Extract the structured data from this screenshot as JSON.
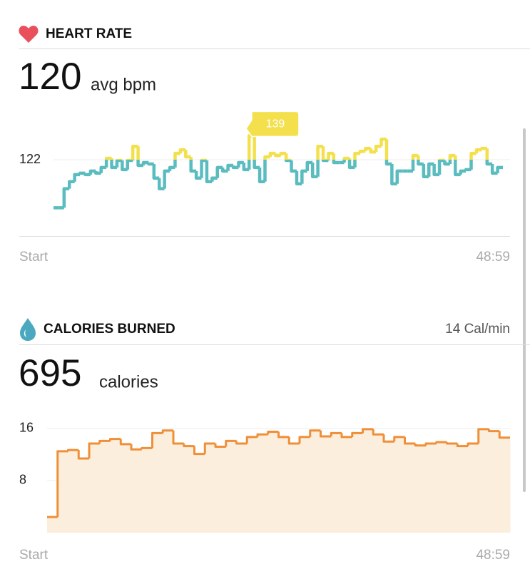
{
  "chart_data": [
    {
      "type": "step-line",
      "title": "HEART RATE",
      "summary_value": 120,
      "summary_unit": "avg bpm",
      "x_labels": [
        "Start",
        "48:59"
      ],
      "series": [
        {
          "color": "#5bbcbf",
          "highlight_color": "#f3e04c",
          "values": [
            88,
            88,
            101.5,
            106.5,
            111.5,
            112.5,
            111.5,
            114,
            112.5,
            116.5,
            123,
            116.5,
            121.5,
            115,
            121.5,
            131.5,
            118,
            120,
            119,
            109,
            101.5,
            114,
            116.5,
            126.5,
            129,
            124,
            114,
            109,
            121.5,
            106.5,
            109,
            116.5,
            114,
            118,
            116.5,
            120,
            115,
            139,
            116.5,
            106.5,
            124,
            126.5,
            125,
            126.5,
            121.5,
            114,
            105,
            114,
            120,
            110,
            131.5,
            121.5,
            126.5,
            120,
            120,
            123,
            116.5,
            126.5,
            128,
            130,
            127.5,
            131.5,
            136.5,
            119,
            105,
            114,
            114,
            114,
            125,
            119,
            110,
            119,
            111.5,
            121.5,
            119,
            125,
            111.5,
            114,
            115,
            126.5,
            129,
            130,
            119,
            112.5,
            116.5
          ]
        }
      ],
      "ylim": [
        68,
        148
      ],
      "yticks": [
        122
      ],
      "grid": true
    },
    {
      "type": "step-area",
      "title": "CALORIES BURNED",
      "rate_label": "14 Cal/min",
      "summary_value": 695,
      "summary_unit": "calories",
      "x_labels": [
        "Start",
        "48:59"
      ],
      "series": [
        {
          "color": "#ef8f38",
          "fill": "#fbeedd",
          "values": [
            2.4,
            12.5,
            12.7,
            11.4,
            13.7,
            14.1,
            14.4,
            13.6,
            12.8,
            13.0,
            15.3,
            15.7,
            13.7,
            13.3,
            12.1,
            13.7,
            13.2,
            14.1,
            13.7,
            14.7,
            15.1,
            15.5,
            14.7,
            13.7,
            14.7,
            15.7,
            14.8,
            15.3,
            14.7,
            15.3,
            15.9,
            15.1,
            14.0,
            14.7,
            13.7,
            13.4,
            13.7,
            13.9,
            13.7,
            13.3,
            13.7,
            15.9,
            15.6,
            14.6
          ]
        }
      ],
      "ylim": [
        0,
        17.5
      ],
      "yticks": [
        16,
        8
      ],
      "grid": true
    }
  ]
}
